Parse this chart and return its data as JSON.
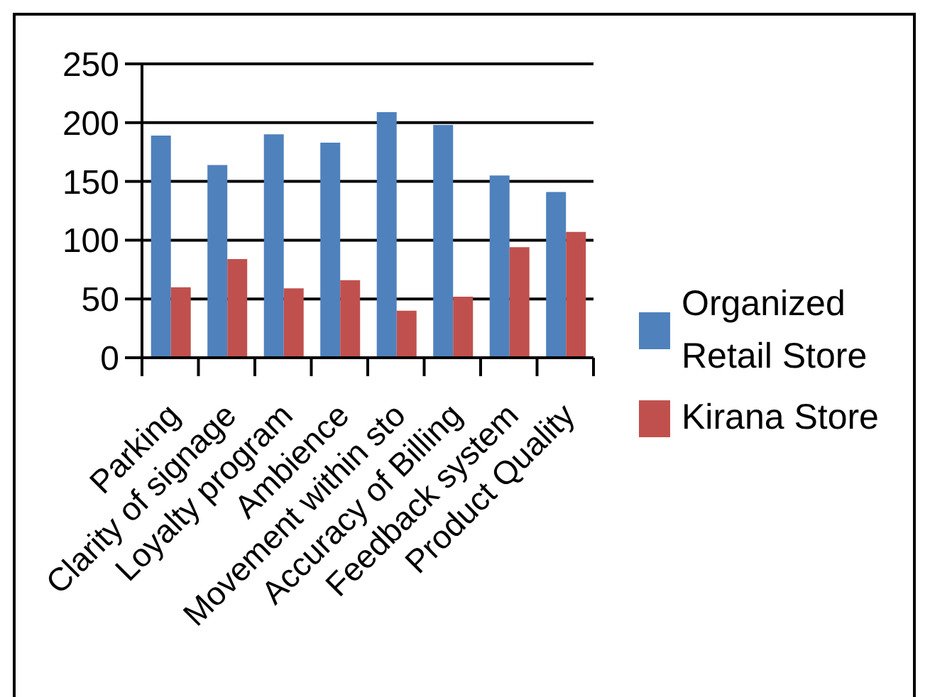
{
  "chart_data": {
    "type": "bar",
    "categories": [
      "Parking",
      "Clarity of signage",
      "Loyalty program",
      "Ambience",
      "Movement within sto",
      "Accuracy of Billing",
      "Feedback system",
      "Product Quality"
    ],
    "series": [
      {
        "name": "Organized Retail Store",
        "color": "#4f81bd",
        "values": [
          189,
          164,
          190,
          183,
          209,
          198,
          155,
          141
        ]
      },
      {
        "name": "Kirana Store",
        "color": "#c0504d",
        "values": [
          60,
          84,
          59,
          66,
          40,
          52,
          94,
          107
        ]
      }
    ],
    "ylim": [
      0,
      250
    ],
    "yticks": [
      0,
      50,
      100,
      150,
      200,
      250
    ],
    "grid": "y",
    "legend": "right"
  }
}
